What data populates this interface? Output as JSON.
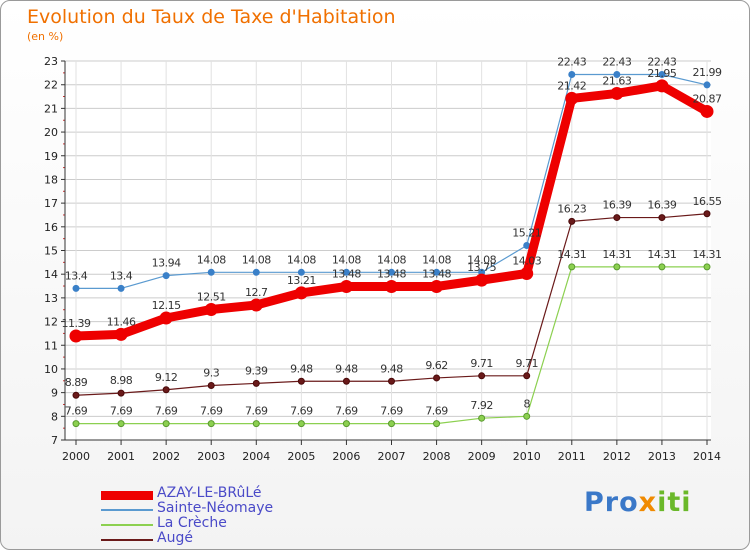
{
  "title": "Evolution du Taux de Taxe d'Habitation",
  "unit_label": "(en %)",
  "logo": {
    "part1": "Pro",
    "part2": "x",
    "part3": "iti"
  },
  "colors": {
    "title": "#f07000",
    "azay": "#ee0000",
    "sainte": "#5a9ad0",
    "creche": "#8cd050",
    "auge": "#6a1a1a",
    "legend_text": "#4a4ac8",
    "grid": "#cccccc",
    "axis": "#333333"
  },
  "chart_data": {
    "type": "line",
    "title": "Evolution du Taux de Taxe d'Habitation",
    "ylabel": "(en %)",
    "xlabel": "",
    "x": [
      2000,
      2001,
      2002,
      2003,
      2004,
      2005,
      2006,
      2007,
      2008,
      2009,
      2010,
      2011,
      2012,
      2013,
      2014
    ],
    "ylim": [
      7,
      23
    ],
    "yticks": [
      7,
      8,
      9,
      10,
      11,
      12,
      13,
      14,
      15,
      16,
      17,
      18,
      19,
      20,
      21,
      22,
      23
    ],
    "grid": true,
    "legend_position": "bottom-left",
    "series": [
      {
        "name": "AZAY-LE-BRûLé",
        "color_key": "azay",
        "values": [
          11.39,
          11.46,
          12.15,
          12.51,
          12.7,
          13.21,
          13.48,
          13.48,
          13.48,
          13.75,
          14.03,
          21.42,
          21.63,
          21.95,
          20.87
        ],
        "labels": [
          "11.39",
          "11.46",
          "12.15",
          "12.51",
          "12.7",
          "13.21",
          "13.48",
          "13.48",
          "13.48",
          "13.75",
          "14.03",
          "21.42",
          "21.63",
          "21.95",
          "20.87"
        ]
      },
      {
        "name": "Sainte-Néomaye",
        "color_key": "sainte",
        "values": [
          13.4,
          13.4,
          13.94,
          14.08,
          14.08,
          14.08,
          14.08,
          14.08,
          14.08,
          14.08,
          15.21,
          22.43,
          22.43,
          22.43,
          21.99
        ],
        "labels": [
          "13.4",
          "13.4",
          "13.94",
          "14.08",
          "14.08",
          "14.08",
          "14.08",
          "14.08",
          "14.08",
          "14.08",
          "15.21",
          "22.43",
          "22.43",
          "22.43",
          "21.99"
        ]
      },
      {
        "name": "La Crèche",
        "color_key": "creche",
        "values": [
          7.69,
          7.69,
          7.69,
          7.69,
          7.69,
          7.69,
          7.69,
          7.69,
          7.69,
          7.92,
          8,
          14.31,
          14.31,
          14.31,
          14.31
        ],
        "labels": [
          "7.69",
          "7.69",
          "7.69",
          "7.69",
          "7.69",
          "7.69",
          "7.69",
          "7.69",
          "7.69",
          "7.92",
          "8",
          "14.31",
          "14.31",
          "14.31",
          "14.31"
        ]
      },
      {
        "name": "Augé",
        "color_key": "auge",
        "values": [
          8.89,
          8.98,
          9.12,
          9.3,
          9.39,
          9.48,
          9.48,
          9.48,
          9.62,
          9.71,
          9.71,
          16.23,
          16.39,
          16.39,
          16.55
        ],
        "labels": [
          "8.89",
          "8.98",
          "9.12",
          "9.3",
          "9.39",
          "9.48",
          "9.48",
          "9.48",
          "9.62",
          "9.71",
          "9.71",
          "16.23",
          "16.39",
          "16.39",
          "16.55"
        ]
      }
    ]
  }
}
